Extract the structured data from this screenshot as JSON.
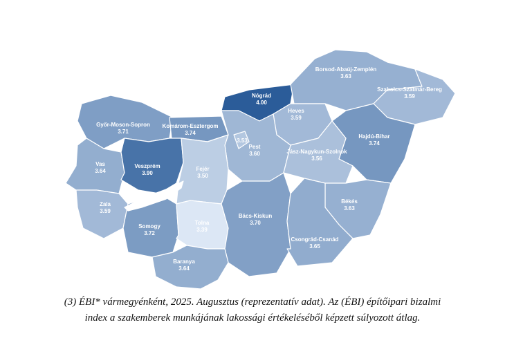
{
  "map": {
    "names": [
      "Győr-Moson-Sopron",
      "Komárom-Esztergom",
      "Nógrád",
      "Borsod-Abaúj-Zemplén",
      "Szabolcs-Szatmár-Bereg",
      "Heves",
      "Hajdú-Bihar",
      "Pest",
      "Jász-Nagykun-Szolnok",
      "Vas",
      "Veszprém",
      "Fejér",
      "Zala",
      "Somogy",
      "Tolna",
      "Bács-Kiskun",
      "Békés",
      "Csongrád-Csanád",
      "Baranya"
    ],
    "budapest_value": 3.53,
    "budapest_label": "3.53",
    "values": [
      3.71,
      3.74,
      4.0,
      3.63,
      3.59,
      3.59,
      3.74,
      3.6,
      3.56,
      3.64,
      3.9,
      3.5,
      3.59,
      3.72,
      3.39,
      3.7,
      3.63,
      3.65,
      3.64
    ],
    "value_labels": [
      "3.71",
      "3.74",
      "4.00",
      "3.63",
      "3.59",
      "3.59",
      "3.74",
      "3.60",
      "3.56",
      "3.64",
      "3.90",
      "3.50",
      "3.59",
      "3.72",
      "3.39",
      "3.70",
      "3.63",
      "3.65",
      "3.64"
    ],
    "color_range": [
      "#dce7f5",
      "#2b5c99"
    ]
  },
  "caption": [
    "(3) ÉBI* vármegyénként, 2025. Augusztus (reprezentatív adat). Az (ÉBI) építőipari bizalmi",
    "index a szakemberek munkájának lakossági értékeléséből képzett súlyozott átlag."
  ]
}
